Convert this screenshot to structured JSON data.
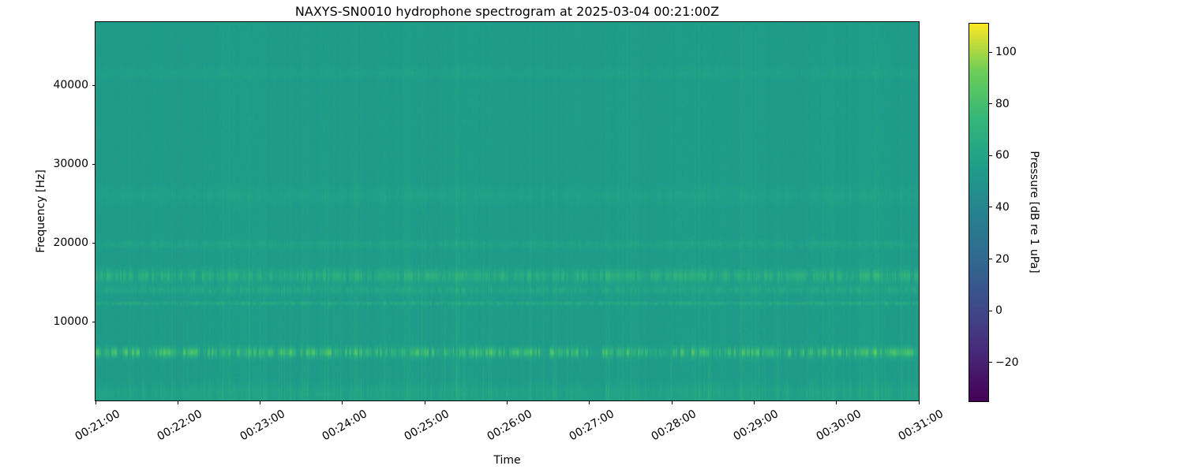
{
  "figure": {
    "title": "NAXYS-SN0010 hydrophone spectrogram at 2025-03-04 00:21:00Z"
  },
  "chart_data": {
    "type": "heatmap",
    "subtype": "spectrogram",
    "title": "NAXYS-SN0010 hydrophone spectrogram at 2025-03-04 00:21:00Z",
    "xlabel": "Time",
    "ylabel": "Frequency [Hz]",
    "colorbar_label": "Pressure [dB re 1 uPa]",
    "colormap": "viridis",
    "x_tick_labels": [
      "00:21:00",
      "00:22:00",
      "00:23:00",
      "00:24:00",
      "00:25:00",
      "00:26:00",
      "00:27:00",
      "00:28:00",
      "00:29:00",
      "00:30:00",
      "00:31:00"
    ],
    "x_tick_rotation_deg": 30,
    "y_tick_values": [
      10000,
      20000,
      30000,
      40000
    ],
    "ylim": [
      0,
      48000
    ],
    "colorbar_tick_values": [
      100,
      80,
      60,
      40,
      20,
      0,
      -20
    ],
    "clim": [
      -35,
      111
    ],
    "background_level_db": 55,
    "pixel_noise_db": 2.4,
    "bands": [
      {
        "freq_hz": 6100,
        "bw_hz": 1000,
        "level_db": 85,
        "speckle": 0.92
      },
      {
        "freq_hz": 12300,
        "bw_hz": 400,
        "level_db": 66,
        "speckle": 0.75
      },
      {
        "freq_hz": 14000,
        "bw_hz": 800,
        "level_db": 64,
        "speckle": 0.7
      },
      {
        "freq_hz": 15800,
        "bw_hz": 1300,
        "level_db": 72,
        "speckle": 0.8
      },
      {
        "freq_hz": 19800,
        "bw_hz": 800,
        "level_db": 61,
        "speckle": 0.6
      },
      {
        "freq_hz": 26000,
        "bw_hz": 1800,
        "level_db": 59,
        "speckle": 0.5
      },
      {
        "freq_hz": 41500,
        "bw_hz": 1000,
        "level_db": 58,
        "speckle": 0.2
      },
      {
        "freq_hz": 900,
        "bw_hz": 1800,
        "level_db": 61,
        "speckle": 0.55
      }
    ],
    "clicks": {
      "burst_rate": 0.05,
      "max_boost_db": 13
    },
    "seed": 1234
  }
}
